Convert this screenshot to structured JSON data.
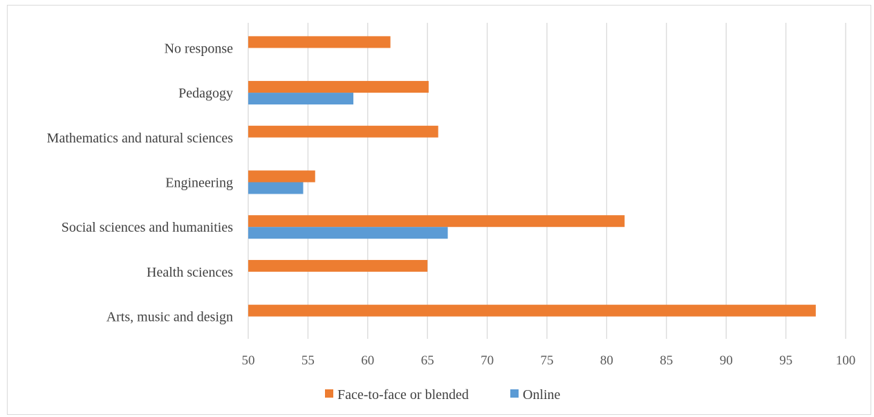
{
  "chart_data": {
    "type": "bar",
    "orientation": "horizontal",
    "categories": [
      "No response",
      "Pedagogy",
      "Mathematics and natural sciences",
      "Engineering",
      "Social sciences and humanities",
      "Health sciences",
      "Arts, music and design"
    ],
    "series": [
      {
        "name": "Face-to-face or blended",
        "color": "#ed7d31",
        "values": [
          61.9,
          65.1,
          65.9,
          55.6,
          81.5,
          65.0,
          97.5
        ]
      },
      {
        "name": "Online",
        "color": "#5b9bd5",
        "values": [
          null,
          58.8,
          null,
          54.6,
          66.7,
          null,
          null
        ]
      }
    ],
    "xlim": [
      50,
      100
    ],
    "xticks": [
      "50",
      "55",
      "60",
      "65",
      "70",
      "75",
      "80",
      "85",
      "90",
      "95",
      "100"
    ],
    "grid": "vertical",
    "legend": "bottom",
    "title": "",
    "xlabel": "",
    "ylabel": ""
  }
}
